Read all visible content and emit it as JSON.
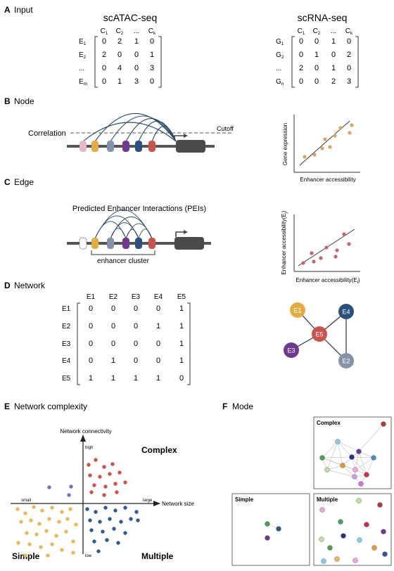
{
  "sections": {
    "a": {
      "letter": "A",
      "title": "Input"
    },
    "b": {
      "letter": "B",
      "title": "Node"
    },
    "c": {
      "letter": "C",
      "title": "Edge"
    },
    "d": {
      "letter": "D",
      "title": "Network"
    },
    "e": {
      "letter": "E",
      "title": "Network complexity"
    },
    "f": {
      "letter": "F",
      "title": "Mode"
    }
  },
  "input": {
    "atac": {
      "title": "scATAC-seq",
      "cols": [
        [
          "C",
          "1"
        ],
        [
          "C",
          "2"
        ],
        [
          "...",
          ""
        ],
        [
          "C",
          "k"
        ]
      ],
      "rows": [
        [
          "E",
          "1"
        ],
        [
          "E",
          "2"
        ],
        [
          "...",
          ""
        ],
        [
          "E",
          "m"
        ]
      ],
      "values": [
        [
          "0",
          "2",
          "1",
          "0"
        ],
        [
          "2",
          "0",
          "0",
          "1"
        ],
        [
          "0",
          "4",
          "0",
          "3"
        ],
        [
          "0",
          "1",
          "3",
          "0"
        ]
      ]
    },
    "rna": {
      "title": "scRNA-seq",
      "cols": [
        [
          "C",
          "1"
        ],
        [
          "C",
          "2"
        ],
        [
          "...",
          ""
        ],
        [
          "C",
          "k"
        ]
      ],
      "rows": [
        [
          "G",
          "1"
        ],
        [
          "G",
          "2"
        ],
        [
          "...",
          ""
        ],
        [
          "G",
          "n"
        ]
      ],
      "values": [
        [
          "0",
          "0",
          "1",
          "0"
        ],
        [
          "0",
          "1",
          "0",
          "2"
        ],
        [
          "2",
          "0",
          "1",
          "0"
        ],
        [
          "0",
          "0",
          "2",
          "3"
        ]
      ]
    }
  },
  "node": {
    "correlation_label": "Correlation",
    "cutoff_label": "Cutoff",
    "scatter": {
      "xlabel": "Enhancer accessibility",
      "ylabel": "Gene expression"
    }
  },
  "edge": {
    "title": "Predicted Enhancer Interactions (PEIs)",
    "cluster_label": "enhancer cluster",
    "scatter": {
      "xlabel_main": "Enhancer accessibility(E",
      "xlabel_sub": "i",
      "xlabel_close": ")",
      "ylabel_main": "Enhancer accessibility(E",
      "ylabel_sub": "j",
      "ylabel_close": ")"
    }
  },
  "network": {
    "labels": [
      "E1",
      "E2",
      "E3",
      "E4",
      "E5"
    ],
    "matrix": [
      [
        "0",
        "0",
        "0",
        "0",
        "1"
      ],
      [
        "0",
        "0",
        "0",
        "1",
        "1"
      ],
      [
        "0",
        "0",
        "0",
        "0",
        "1"
      ],
      [
        "0",
        "1",
        "0",
        "0",
        "1"
      ],
      [
        "1",
        "1",
        "1",
        "1",
        "0"
      ]
    ],
    "graph_nodes": [
      "E1",
      "E2",
      "E3",
      "E4",
      "E5"
    ]
  },
  "complexity": {
    "yaxis": "Network connectivity",
    "xaxis": "Network size",
    "high": "high",
    "low": "low",
    "small": "small",
    "large": "large",
    "complex": "Complex",
    "simple": "Simple",
    "multiple": "Multiple"
  },
  "mode": {
    "complex": "Complex",
    "simple": "Simple",
    "multiple": "Multiple"
  },
  "colors": {
    "enh_pink": "#e8b9c8",
    "enh_gold": "#e2ad45",
    "enh_gray": "#8592a8",
    "enh_purple": "#6d3a8e",
    "enh_blue": "#2d4f7c",
    "enh_red": "#c9534d",
    "scatter_tan": "#d4a66a",
    "scatter_rose": "#c86470",
    "dot_gold": "#e7b95a",
    "dot_red": "#c9534d",
    "dot_blue": "#2f5a90",
    "dot_purple": "#7a6cc2",
    "arc_color": "#2c4a66",
    "gene_dark": "#4a4a4a"
  }
}
